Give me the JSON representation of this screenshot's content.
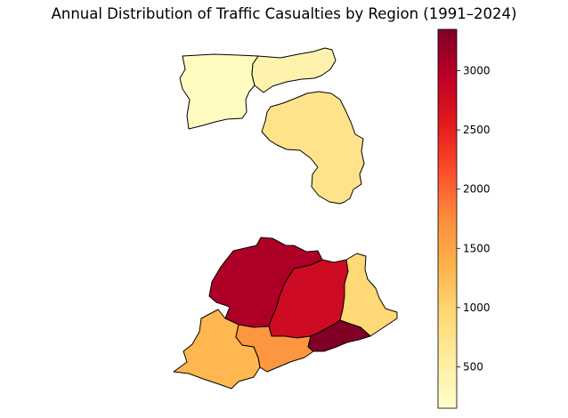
{
  "title": "Annual Distribution of Traffic Casualties by Region (1991–2024)",
  "colormap": {
    "name": "YlOrRd",
    "min": 150,
    "max": 3350,
    "stops": [
      "#ffffcc",
      "#ffeda0",
      "#fed976",
      "#feb24c",
      "#fd8d3c",
      "#fc4e2a",
      "#e31a1c",
      "#bd0026",
      "#800026"
    ],
    "ticks": [
      500,
      1000,
      1500,
      2000,
      2500,
      3000
    ]
  },
  "regions": [
    {
      "id": "region-north-west",
      "value": 250
    },
    {
      "id": "region-north-east",
      "value": 430
    },
    {
      "id": "region-north-central",
      "value": 760
    },
    {
      "id": "region-south-central-west",
      "value": 3050
    },
    {
      "id": "region-south-central-east",
      "value": 2780
    },
    {
      "id": "region-south-east",
      "value": 950
    },
    {
      "id": "region-south-west",
      "value": 1300
    },
    {
      "id": "region-south",
      "value": 1650
    },
    {
      "id": "region-south-coast",
      "value": 3350
    }
  ]
}
